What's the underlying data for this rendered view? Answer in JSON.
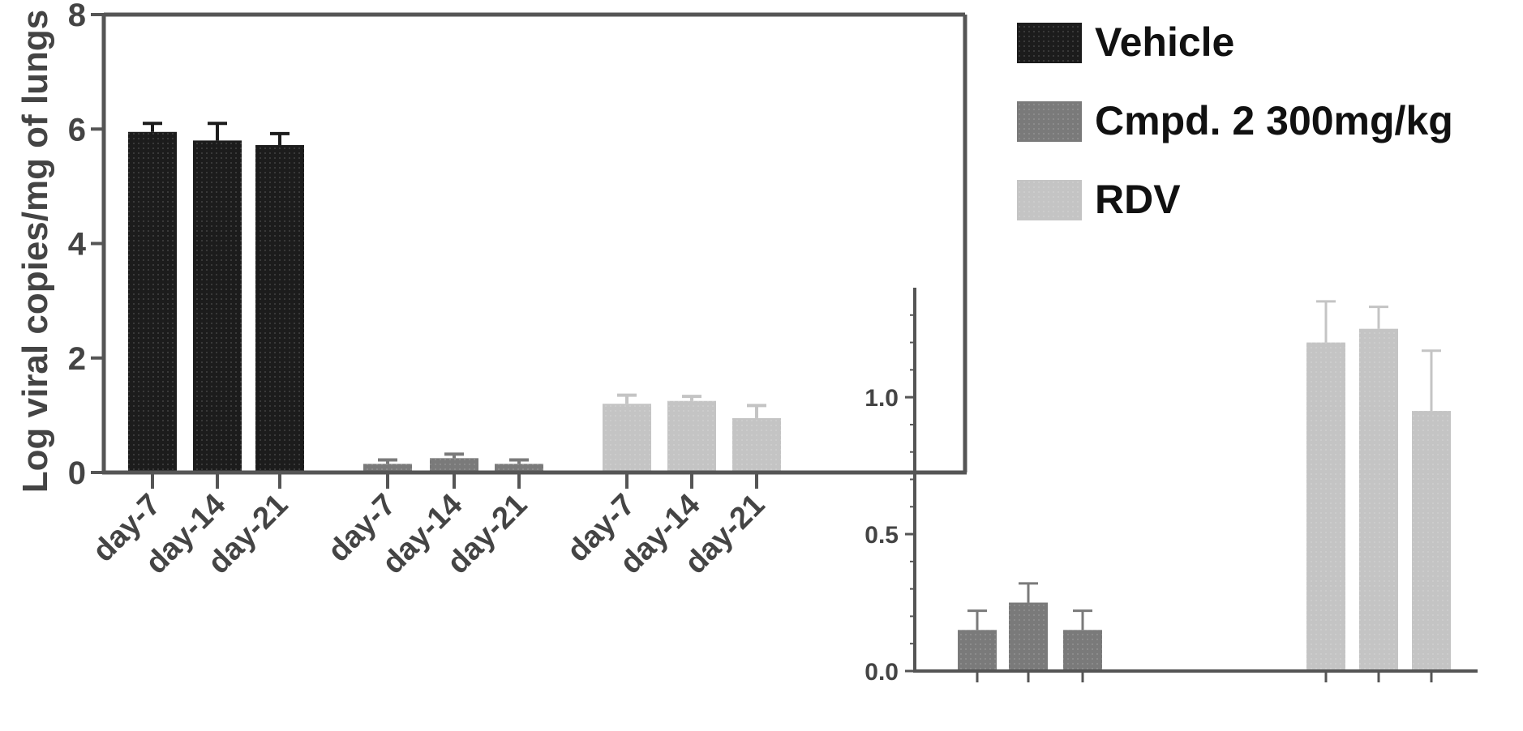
{
  "chart_data": [
    {
      "type": "bar",
      "title": "",
      "ylabel": "Log viral copies/mg of lungs",
      "xlabel": "",
      "ylim": [
        0,
        8
      ],
      "yticks": [
        0,
        2,
        4,
        6,
        8
      ],
      "grid": false,
      "legend_placement": "right, outside",
      "groups": [
        {
          "series": "Vehicle",
          "categories": [
            "day-7",
            "day-14",
            "day-21"
          ],
          "values": [
            5.95,
            5.8,
            5.72
          ],
          "errors": [
            0.15,
            0.3,
            0.2
          ]
        },
        {
          "series": "Cmpd. 2 300mg/kg",
          "categories": [
            "day-7",
            "day-14",
            "day-21"
          ],
          "values": [
            0.15,
            0.25,
            0.15
          ],
          "errors": [
            0.07,
            0.07,
            0.07
          ]
        },
        {
          "series": "RDV",
          "categories": [
            "day-7",
            "day-14",
            "day-21"
          ],
          "values": [
            1.2,
            1.25,
            0.95
          ],
          "errors": [
            0.15,
            0.08,
            0.22
          ]
        }
      ]
    },
    {
      "type": "bar",
      "title": "",
      "ylabel": "",
      "xlabel": "",
      "ylim": [
        0,
        1.4
      ],
      "yticks": [
        0.0,
        0.5,
        1.0
      ],
      "ytick_labels": [
        "0.0",
        "0.5",
        "1.0"
      ],
      "grid": false,
      "groups": [
        {
          "series": "Cmpd. 2 300mg/kg",
          "values": [
            0.15,
            0.25,
            0.15
          ],
          "errors": [
            0.07,
            0.07,
            0.07
          ]
        },
        {
          "series": "RDV",
          "values": [
            1.2,
            1.25,
            0.95
          ],
          "errors": [
            0.15,
            0.08,
            0.22
          ]
        }
      ]
    }
  ],
  "legend": [
    {
      "label": "Vehicle",
      "color": "#1c1c1c"
    },
    {
      "label": "Cmpd. 2 300mg/kg",
      "color": "#7a7a7a"
    },
    {
      "label": "RDV",
      "color": "#c4c4c4"
    }
  ],
  "colors": {
    "axis": "#555555",
    "text": "#444444"
  }
}
